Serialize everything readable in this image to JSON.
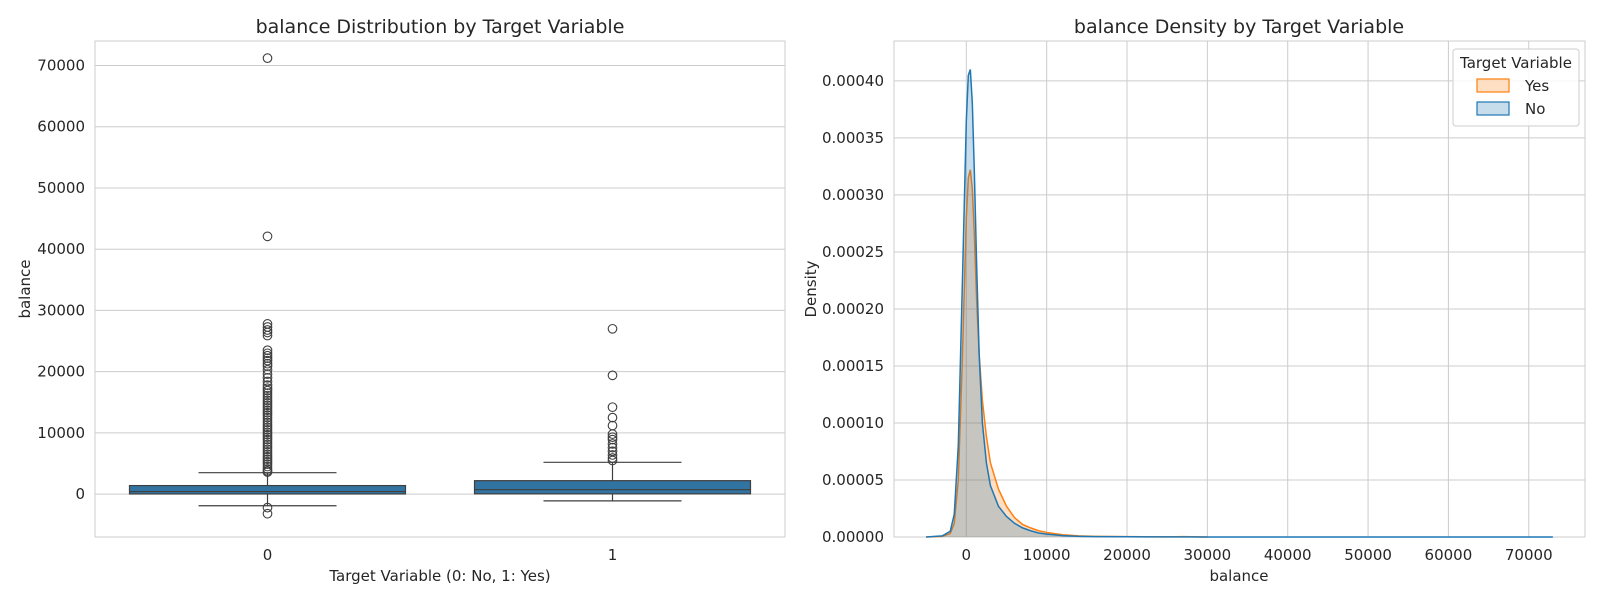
{
  "chart_data": [
    {
      "type": "box",
      "title": "balance Distribution by Target Variable",
      "xlabel": "Target Variable (0: No, 1: Yes)",
      "ylabel": "balance",
      "categories": [
        "0",
        "1"
      ],
      "ylim": [
        -7000,
        74000
      ],
      "yticks": [
        0,
        10000,
        20000,
        30000,
        40000,
        50000,
        60000,
        70000
      ],
      "ytick_labels": [
        "0",
        "10000",
        "20000",
        "30000",
        "40000",
        "50000",
        "60000",
        "70000"
      ],
      "grid": true,
      "box_color": "#3274a1",
      "boxes": [
        {
          "category": "0",
          "whisker_low": -1900,
          "q1": 30,
          "median": 420,
          "q3": 1400,
          "whisker_high": 3500,
          "outliers": [
            71200,
            42100,
            27800,
            27300,
            26800,
            26400,
            25900,
            23500,
            23000,
            22600,
            22200,
            21800,
            21300,
            20900,
            20300,
            19600,
            19000,
            18400,
            17800,
            17300,
            16900,
            16500,
            16100,
            15700,
            15300,
            14900,
            14500,
            14100,
            13700,
            13300,
            12900,
            12500,
            12100,
            11700,
            11300,
            10900,
            10500,
            10100,
            9700,
            9300,
            8900,
            8500,
            8100,
            7700,
            7300,
            6900,
            6500,
            6100,
            5700,
            5300,
            4900,
            4500,
            4100,
            3800,
            3600,
            -2200,
            -3200
          ]
        },
        {
          "category": "1",
          "whisker_low": -1100,
          "q1": 50,
          "median": 730,
          "q3": 2200,
          "whisker_high": 5200,
          "outliers": [
            27000,
            19400,
            14200,
            12500,
            11200,
            9800,
            9300,
            8900,
            8200,
            7600,
            7000,
            6400,
            5900,
            5500
          ]
        }
      ]
    },
    {
      "type": "area",
      "title": "balance Density by Target Variable",
      "xlabel": "balance",
      "ylabel": "Density",
      "xlim": [
        -9000,
        77000
      ],
      "ylim": [
        0,
        0.000435
      ],
      "xticks": [
        0,
        10000,
        20000,
        30000,
        40000,
        50000,
        60000,
        70000
      ],
      "xtick_labels": [
        "0",
        "10000",
        "20000",
        "30000",
        "40000",
        "50000",
        "60000",
        "70000"
      ],
      "yticks": [
        0,
        5e-05,
        0.0001,
        0.00015,
        0.0002,
        0.00025,
        0.0003,
        0.00035,
        0.0004
      ],
      "ytick_labels": [
        "0.00000",
        "0.00005",
        "0.00010",
        "0.00015",
        "0.00020",
        "0.00025",
        "0.00030",
        "0.00035",
        "0.00040"
      ],
      "grid": true,
      "legend": {
        "title": "Target Variable",
        "placement": "top-right"
      },
      "series": [
        {
          "name": "Yes",
          "color": "#ff7f0e",
          "x": [
            -5000,
            -3000,
            -2000,
            -1500,
            -1000,
            -500,
            0,
            250,
            500,
            750,
            1000,
            1300,
            1600,
            2000,
            2500,
            3000,
            4000,
            5000,
            6000,
            7000,
            8000,
            9000,
            10000,
            12000,
            14000,
            16000,
            20000,
            25000,
            27000,
            30000
          ],
          "y": [
            0,
            5e-07,
            3e-06,
            1.2e-05,
            5e-05,
            0.000155,
            0.00028,
            0.000315,
            0.000322,
            0.000305,
            0.000265,
            0.000205,
            0.00016,
            0.00012,
            8.8e-05,
            6.5e-05,
            4.2e-05,
            2.7e-05,
            1.7e-05,
            1.1e-05,
            8e-06,
            5.5e-06,
            4e-06,
            2e-06,
            1e-06,
            6e-07,
            3e-07,
            1e-07,
            3e-07,
            0
          ]
        },
        {
          "name": "No",
          "color": "#1f77b4",
          "x": [
            -5000,
            -3000,
            -2000,
            -1500,
            -1000,
            -500,
            0,
            250,
            500,
            750,
            1000,
            1300,
            1600,
            2000,
            2500,
            3000,
            4000,
            5000,
            6000,
            7000,
            8000,
            9000,
            10000,
            12000,
            14000,
            16000,
            20000,
            25000,
            30000,
            42000,
            50000,
            60000,
            71000,
            73000
          ],
          "y": [
            0,
            1e-06,
            5e-06,
            2e-05,
            8e-05,
            0.00022,
            0.000365,
            0.000405,
            0.00041,
            0.00038,
            0.00032,
            0.000235,
            0.00016,
            0.0001,
            6.5e-05,
            4.5e-05,
            2.7e-05,
            1.8e-05,
            1.2e-05,
            8e-06,
            5.5e-06,
            3.5e-06,
            2.5e-06,
            1.2e-06,
            6e-07,
            3e-07,
            2e-07,
            1e-07,
            5e-08,
            5e-08,
            3e-08,
            2e-08,
            2e-08,
            0
          ]
        }
      ]
    }
  ]
}
